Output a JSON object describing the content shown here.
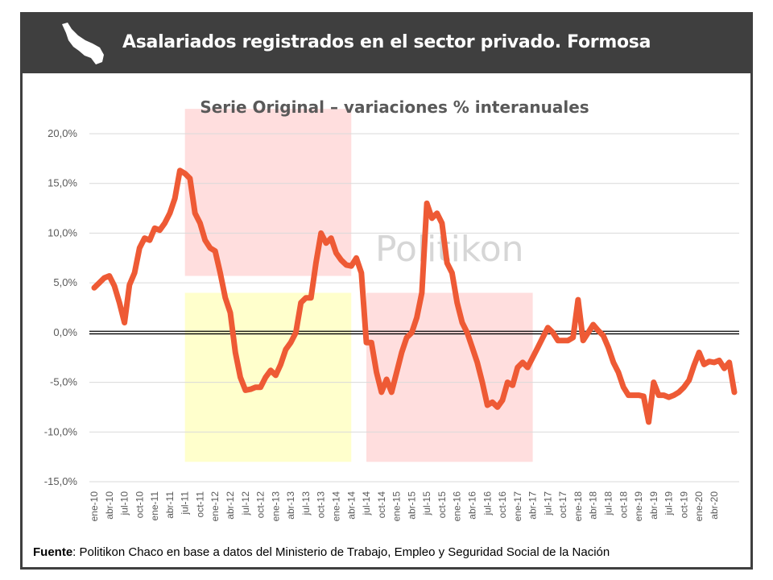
{
  "header": {
    "title": "Asalariados registrados en el sector privado. Formosa",
    "icon": "formosa-province-map-icon"
  },
  "watermark": "Politikon",
  "source": {
    "label": "Fuente",
    "text": ": Politikon Chaco en base a datos del Ministerio de Trabajo, Empleo y Seguridad Social de la Nación"
  },
  "chart_data": {
    "type": "line",
    "title": "Serie Original – variaciones % interanuales",
    "xlabel": "",
    "ylabel": "",
    "ylim": [
      -15,
      20
    ],
    "y_ticks": [
      20,
      15,
      10,
      5,
      0,
      -5,
      -10,
      -15
    ],
    "y_tick_labels": [
      "20,0%",
      "15,0%",
      "10,0%",
      "5,0%",
      "0,0%",
      "-5,0%",
      "-10,0%",
      "-15,0%"
    ],
    "grid": true,
    "legend": "none",
    "x_tick_labels": [
      "ene-10",
      "abr-10",
      "jul-10",
      "oct-10",
      "ene-11",
      "abr-11",
      "jul-11",
      "oct-11",
      "ene-12",
      "abr-12",
      "jul-12",
      "oct-12",
      "ene-13",
      "abr-13",
      "jul-13",
      "oct-13",
      "ene-14",
      "abr-14",
      "jul-14",
      "oct-14",
      "ene-15",
      "abr-15",
      "jul-15",
      "oct-15",
      "ene-16",
      "abr-16",
      "jul-16",
      "oct-16",
      "ene-17",
      "abr-17",
      "jul-17",
      "oct-17",
      "ene-18",
      "abr-18",
      "jul-18",
      "oct-18",
      "ene-19",
      "abr-19",
      "jul-19",
      "oct-19",
      "ene-20",
      "abr-20"
    ],
    "series": [
      {
        "color": "#ee5a35",
        "x_start": "ene-10",
        "frequency": "monthly",
        "values": [
          4.5,
          5.0,
          5.5,
          5.7,
          4.7,
          3.0,
          1.0,
          4.8,
          6.0,
          8.5,
          9.5,
          9.3,
          10.5,
          10.3,
          11.0,
          12.0,
          13.5,
          16.3,
          16.0,
          15.5,
          12.0,
          11.0,
          9.3,
          8.5,
          8.2,
          6.0,
          3.5,
          2.0,
          -2.0,
          -4.5,
          -5.8,
          -5.7,
          -5.5,
          -5.5,
          -4.5,
          -3.8,
          -4.3,
          -3.2,
          -1.7,
          -1.0,
          0.0,
          3.0,
          3.5,
          3.5,
          7.0,
          10.0,
          9.0,
          9.5,
          8.0,
          7.3,
          6.8,
          6.7,
          7.5,
          6.0,
          -1.0,
          -1.0,
          -4.0,
          -6.0,
          -4.7,
          -6.0,
          -4.0,
          -2.0,
          -0.5,
          0.0,
          1.5,
          4.0,
          13.0,
          11.5,
          12.0,
          11.0,
          7.0,
          6.0,
          3.0,
          1.0,
          0.0,
          -1.5,
          -3.0,
          -5.0,
          -7.3,
          -7.0,
          -7.5,
          -6.8,
          -5.0,
          -5.3,
          -3.5,
          -3.0,
          -3.5,
          -2.5,
          -1.5,
          -0.5,
          0.5,
          0.0,
          -0.8,
          -0.8,
          -0.8,
          -0.5,
          3.3,
          -0.8,
          0.0,
          0.8,
          0.2,
          -0.3,
          -1.5,
          -3.0,
          -4.0,
          -5.5,
          -6.3,
          -6.3,
          -6.3,
          -6.4,
          -9.0,
          -5.0,
          -6.3,
          -6.3,
          -6.5,
          -6.3,
          -6.0,
          -5.5,
          -4.8,
          -3.3,
          -2.0,
          -3.2,
          -2.9,
          -3.0,
          -2.8,
          -3.6,
          -3.0,
          -6.0
        ]
      }
    ],
    "highlight_regions": [
      {
        "x_from": "jul-11",
        "x_to": "abr-14",
        "y_from": 5.7,
        "y_to": 22.5,
        "color": "#ffdede"
      },
      {
        "x_from": "jul-11",
        "x_to": "abr-14",
        "y_from": -13.0,
        "y_to": 4.0,
        "color": "#ffffcc"
      },
      {
        "x_from": "jul-14",
        "x_to": "abr-17",
        "y_from": -13.0,
        "y_to": 4.0,
        "color": "#ffdede"
      }
    ]
  }
}
